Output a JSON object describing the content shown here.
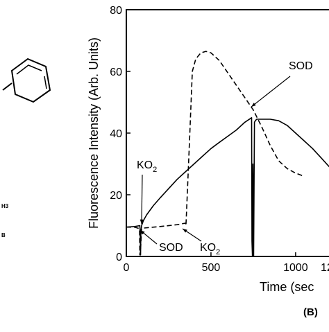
{
  "panel_label": "(B)",
  "structure_fragments": [
    "H3",
    "B"
  ],
  "chart_data": {
    "type": "line",
    "xlabel": "Time (sec",
    "ylabel": "Fluorescence Intensity (Arb. Units)",
    "xlim": [
      0,
      1230
    ],
    "ylim": [
      0,
      80
    ],
    "x_ticks": [
      0,
      500,
      1000
    ],
    "x_tick_labels": [
      "0",
      "500",
      "1000"
    ],
    "x_tick_label_partial": "12",
    "y_ticks": [
      0,
      20,
      40,
      60,
      80
    ],
    "y_tick_labels": [
      "0",
      "20",
      "40",
      "60",
      "80"
    ],
    "grid": false,
    "series": [
      {
        "style": "solid",
        "x": [
          0,
          50,
          80,
          82,
          84,
          86,
          90,
          100,
          120,
          160,
          200,
          250,
          300,
          350,
          400,
          450,
          500,
          550,
          600,
          650,
          700,
          740,
          742,
          745,
          748,
          752,
          757,
          762,
          770,
          800,
          850,
          900,
          950,
          1000,
          1050,
          1100,
          1150,
          1200,
          1230
        ],
        "y": [
          9.5,
          9.7,
          10.0,
          7.0,
          0.5,
          8.0,
          10.0,
          11.5,
          13.5,
          16.5,
          19.0,
          22.0,
          25.0,
          27.5,
          30.0,
          32.5,
          35.0,
          37.0,
          39.0,
          41.0,
          43.5,
          45.0,
          5.0,
          0.0,
          30.0,
          0.0,
          43.5,
          44.0,
          44.5,
          44.5,
          44.5,
          44.0,
          42.5,
          40.0,
          37.5,
          35.0,
          32.0,
          29.0,
          27.0
        ]
      },
      {
        "style": "dashed",
        "x": [
          0,
          50,
          78,
          80,
          84,
          90,
          100,
          200,
          300,
          350,
          352,
          360,
          375,
          390,
          410,
          440,
          470,
          500,
          550,
          600,
          650,
          700,
          750,
          800,
          850,
          900,
          950,
          1000,
          1050
        ],
        "y": [
          9.5,
          9.5,
          9.0,
          0.5,
          2.0,
          9.0,
          9.2,
          9.7,
          10.3,
          10.8,
          10.0,
          20.0,
          40.0,
          60.0,
          64.0,
          66.0,
          66.5,
          66.0,
          63.5,
          59.5,
          55.5,
          51.5,
          47.5,
          42.0,
          36.0,
          31.0,
          28.5,
          27.0,
          26.0
        ]
      }
    ],
    "annotations": [
      {
        "text": "KO",
        "sub": "2",
        "x": 95,
        "y": 10.5
      },
      {
        "text": "SOD",
        "x": 100,
        "y": 8.5
      },
      {
        "text": "KO",
        "sub": "2",
        "x": 350,
        "y": 9.0
      },
      {
        "text": "SOD",
        "x": 760,
        "y": 48.5
      }
    ]
  }
}
